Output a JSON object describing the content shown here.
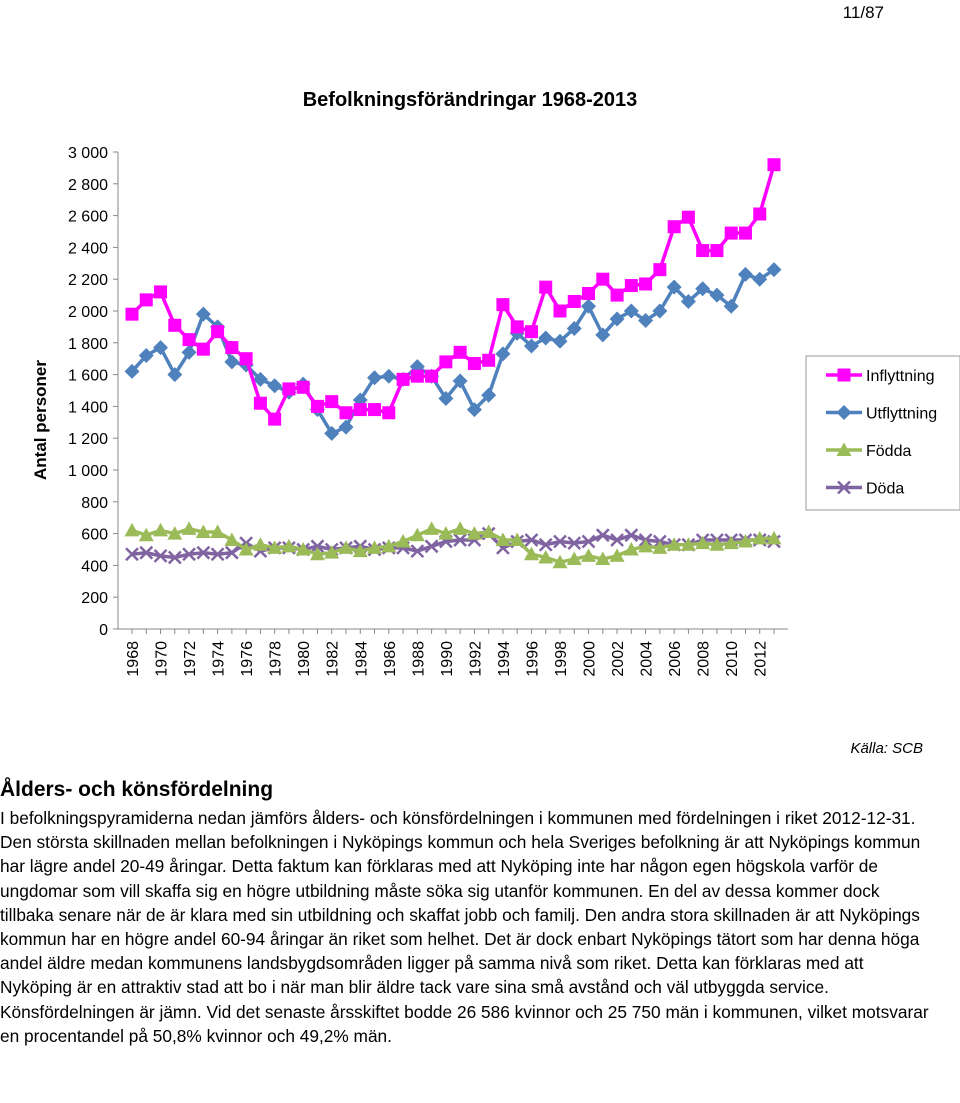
{
  "page_number": "11/87",
  "source_note": "Källa: SCB",
  "section": {
    "heading": "Ålders- och könsfördelning",
    "body": "I befolkningspyramiderna nedan jämförs ålders- och könsfördelningen i kommunen med fördelningen i riket 2012-12-31. Den största skillnaden mellan befolkningen i Nyköpings kommun och hela Sveriges befolkning är att Nyköpings kommun har lägre andel 20-49 åringar. Detta faktum kan förklaras med att Nyköping inte har någon egen högskola varför de ungdomar som vill skaffa sig en högre utbildning måste söka sig utanför kommunen. En del av dessa kommer dock tillbaka senare när de är klara med sin utbildning och skaffat jobb och familj. Den andra stora skillnaden är att Nyköpings kommun har en högre andel 60-94 åringar än riket som helhet. Det är dock enbart Nyköpings tätort som har denna höga andel äldre medan kommunens landsbygdsområden ligger på samma nivå som riket. Detta kan förklaras med att Nyköping är en attraktiv stad att bo i när man blir äldre tack vare sina små avstånd och väl utbyggda service. Könsfördelningen är jämn. Vid det senaste årsskiftet bodde 26 586 kvinnor och 25 750 män i kommunen, vilket motsvarar en procentandel på 50,8% kvinnor och 49,2% män."
  },
  "chart_data": {
    "type": "line",
    "title": "Befolkningsförändringar 1968-2013",
    "ylabel": "Antal personer",
    "xlabel": "",
    "ylim": [
      0,
      3000
    ],
    "yticks": [
      "0",
      "200",
      "400",
      "600",
      "800",
      "1 000",
      "1 200",
      "1 400",
      "1 600",
      "1 800",
      "2 000",
      "2 200",
      "2 400",
      "2 600",
      "2 800",
      "3 000"
    ],
    "xtick_labels": [
      "1968",
      "1970",
      "1972",
      "1974",
      "1976",
      "1978",
      "1980",
      "1982",
      "1984",
      "1986",
      "1988",
      "1990",
      "1992",
      "1994",
      "1996",
      "1998",
      "2000",
      "2002",
      "2004",
      "2006",
      "2008",
      "2010",
      "2012"
    ],
    "legend_position": "right",
    "x": [
      1968,
      1969,
      1970,
      1971,
      1972,
      1973,
      1974,
      1975,
      1976,
      1977,
      1978,
      1979,
      1980,
      1981,
      1982,
      1983,
      1984,
      1985,
      1986,
      1987,
      1988,
      1989,
      1990,
      1991,
      1992,
      1993,
      1994,
      1995,
      1996,
      1997,
      1998,
      1999,
      2000,
      2001,
      2002,
      2003,
      2004,
      2005,
      2006,
      2007,
      2008,
      2009,
      2010,
      2011,
      2012,
      2013
    ],
    "series": [
      {
        "name": "Inflyttning",
        "color": "#ff00ff",
        "marker": "square",
        "values": [
          1980,
          2070,
          2120,
          1910,
          1820,
          1760,
          1870,
          1770,
          1700,
          1420,
          1320,
          1510,
          1520,
          1400,
          1430,
          1360,
          1380,
          1380,
          1360,
          1570,
          1590,
          1590,
          1680,
          1740,
          1670,
          1690,
          2040,
          1900,
          1870,
          2150,
          2000,
          2060,
          2110,
          2200,
          2100,
          2160,
          2170,
          2260,
          2530,
          2590,
          2380,
          2380,
          2490,
          2490,
          2610,
          2920
        ]
      },
      {
        "name": "Utflyttning",
        "color": "#4f81bd",
        "marker": "diamond",
        "values": [
          1620,
          1720,
          1770,
          1600,
          1740,
          1980,
          1900,
          1680,
          1660,
          1570,
          1530,
          1490,
          1540,
          1380,
          1230,
          1270,
          1440,
          1580,
          1590,
          1570,
          1650,
          1590,
          1450,
          1560,
          1380,
          1470,
          1730,
          1860,
          1780,
          1830,
          1810,
          1890,
          2030,
          1850,
          1950,
          2000,
          1940,
          2000,
          2150,
          2060,
          2140,
          2100,
          2030,
          2230,
          2200,
          2260
        ]
      },
      {
        "name": "Födda",
        "color": "#9bbb59",
        "marker": "triangle",
        "values": [
          620,
          590,
          620,
          600,
          630,
          610,
          610,
          560,
          500,
          530,
          510,
          520,
          500,
          470,
          480,
          510,
          490,
          510,
          520,
          550,
          590,
          630,
          600,
          630,
          600,
          610,
          560,
          560,
          470,
          450,
          420,
          440,
          460,
          440,
          460,
          500,
          520,
          510,
          530,
          530,
          540,
          530,
          540,
          550,
          570,
          570
        ]
      },
      {
        "name": "Döda",
        "color": "#8064a2",
        "marker": "x",
        "values": [
          470,
          480,
          460,
          450,
          470,
          480,
          470,
          480,
          540,
          490,
          510,
          510,
          500,
          520,
          500,
          510,
          520,
          500,
          510,
          510,
          490,
          520,
          550,
          560,
          560,
          600,
          510,
          550,
          560,
          530,
          550,
          540,
          550,
          590,
          560,
          590,
          560,
          550,
          530,
          530,
          560,
          560,
          560,
          560,
          560,
          550
        ]
      }
    ]
  }
}
